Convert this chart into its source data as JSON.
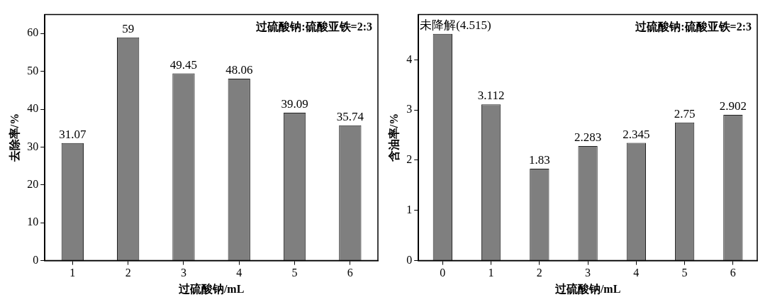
{
  "chart_data": [
    {
      "type": "bar",
      "categories": [
        "1",
        "2",
        "3",
        "4",
        "5",
        "6"
      ],
      "values": [
        31.07,
        59,
        49.45,
        48.06,
        39.09,
        35.74
      ],
      "color": "#7f7f7f",
      "ylim": [
        0,
        65
      ],
      "yticks": [
        0,
        10,
        20,
        30,
        40,
        50,
        60
      ],
      "xlabel": "过硫酸钠/mL",
      "ylabel": "去除率/%",
      "data_labels": true,
      "grid": false,
      "legend": false,
      "annotations": [
        "过硫酸钠:硫酸亚铁=2:3"
      ]
    },
    {
      "type": "bar",
      "categories": [
        "0",
        "1",
        "2",
        "3",
        "4",
        "5",
        "6"
      ],
      "values": [
        4.515,
        3.112,
        1.83,
        2.283,
        2.345,
        2.75,
        2.902
      ],
      "value_labels": [
        "未降解(4.515)",
        "3.112",
        "1.83",
        "2.283",
        "2.345",
        "2.75",
        "2.902"
      ],
      "color": "#7f7f7f",
      "ylim": [
        0,
        4.9
      ],
      "yticks": [
        0,
        1,
        2,
        3,
        4
      ],
      "xlabel": "过硫酸钠/mL",
      "ylabel": "含油率/%",
      "grid": false,
      "legend": false,
      "annotations": [
        "过硫酸钠:硫酸亚铁=2:3"
      ]
    }
  ]
}
